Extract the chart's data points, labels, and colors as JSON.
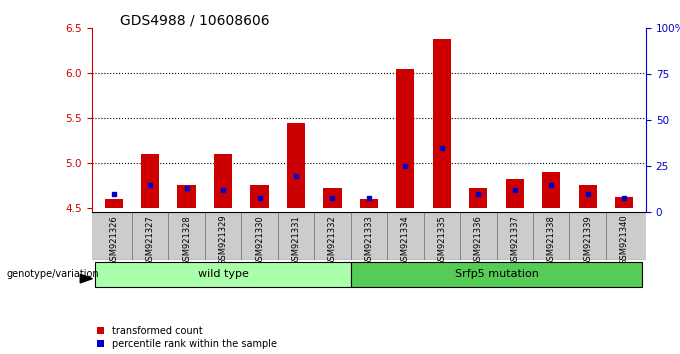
{
  "title": "GDS4988 / 10608606",
  "samples": [
    "GSM921326",
    "GSM921327",
    "GSM921328",
    "GSM921329",
    "GSM921330",
    "GSM921331",
    "GSM921332",
    "GSM921333",
    "GSM921334",
    "GSM921335",
    "GSM921336",
    "GSM921337",
    "GSM921338",
    "GSM921339",
    "GSM921340"
  ],
  "transformed_counts": [
    4.6,
    5.1,
    4.75,
    5.1,
    4.75,
    5.45,
    4.72,
    4.6,
    6.05,
    6.38,
    4.72,
    4.82,
    4.9,
    4.75,
    4.62
  ],
  "percentile_ranks": [
    10,
    15,
    13,
    12,
    8,
    20,
    8,
    8,
    25,
    35,
    10,
    12,
    15,
    10,
    8
  ],
  "baseline": 4.5,
  "ylim_left": [
    4.45,
    6.5
  ],
  "ylim_right": [
    0,
    100
  ],
  "right_ticks": [
    0,
    25,
    50,
    75,
    100
  ],
  "right_tick_labels": [
    "0",
    "25",
    "50",
    "75",
    "100%"
  ],
  "left_ticks": [
    4.5,
    5.0,
    5.5,
    6.0,
    6.5
  ],
  "bar_color": "#cc0000",
  "percentile_color": "#0000cc",
  "groups": [
    {
      "label": "wild type",
      "start": 0,
      "end": 7,
      "color": "#aaffaa"
    },
    {
      "label": "Srfp5 mutation",
      "start": 7,
      "end": 15,
      "color": "#55cc55"
    }
  ],
  "group_label_prefix": "genotype/variation",
  "legend_items": [
    {
      "label": "transformed count",
      "color": "#cc0000"
    },
    {
      "label": "percentile rank within the sample",
      "color": "#0000cc"
    }
  ],
  "title_fontsize": 10,
  "axis_color_left": "#cc0000",
  "axis_color_right": "#0000cc",
  "bar_width": 0.5,
  "plot_bg": "#ffffff",
  "sample_bg": "#cccccc",
  "fig_bg": "#ffffff"
}
